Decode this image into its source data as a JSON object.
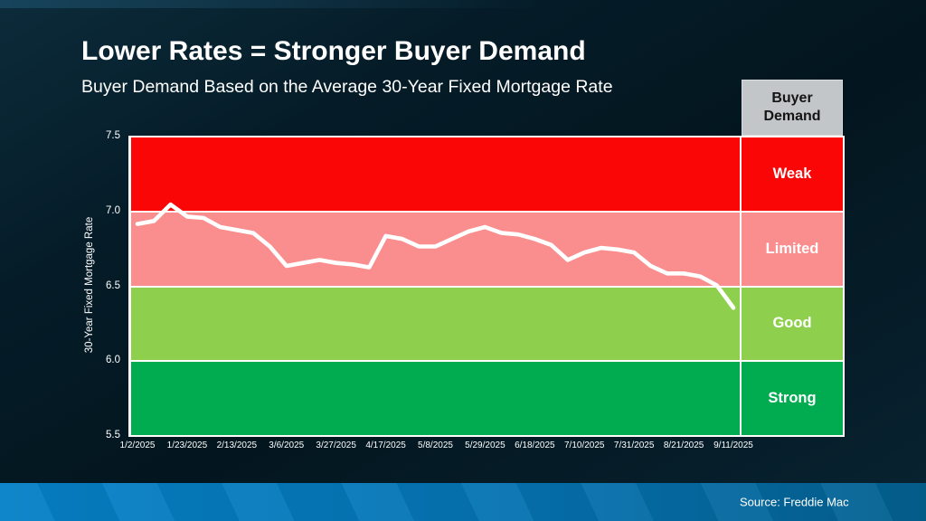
{
  "colors": {
    "background": "#051c28",
    "line": "#ffffff",
    "weak_red": "#fa0606",
    "limited_pink": "#fa8d8d",
    "good_lightgreen": "#8ed04e",
    "strong_green": "#01ab50",
    "panel_header_bg": "#c3c6c8",
    "footer_blue": "#0581c8"
  },
  "chart_data": {
    "type": "line",
    "title": "Lower Rates = Stronger Buyer Demand",
    "subtitle": "Buyer Demand Based on the Average 30-Year Fixed Mortgage Rate",
    "ylabel": "30-Year Fixed Mortgage Rate",
    "ylim": [
      5.5,
      7.5
    ],
    "yticks": [
      7.5,
      7.0,
      6.5,
      6.0,
      5.5
    ],
    "xticklabels": [
      "1/2/2025",
      "1/23/2025",
      "2/13/2025",
      "3/6/2025",
      "3/27/2025",
      "4/17/2025",
      "5/8/2025",
      "5/29/2025",
      "6/18/2025",
      "7/10/2025",
      "7/31/2025",
      "8/21/2025",
      "9/11/2025"
    ],
    "x": [
      "1/2/2025",
      "1/9/2025",
      "1/16/2025",
      "1/23/2025",
      "1/30/2025",
      "2/6/2025",
      "2/13/2025",
      "2/20/2025",
      "2/27/2025",
      "3/6/2025",
      "3/13/2025",
      "3/20/2025",
      "3/27/2025",
      "4/3/2025",
      "4/10/2025",
      "4/17/2025",
      "4/24/2025",
      "5/1/2025",
      "5/8/2025",
      "5/15/2025",
      "5/22/2025",
      "5/29/2025",
      "6/5/2025",
      "6/12/2025",
      "6/18/2025",
      "6/26/2025",
      "7/3/2025",
      "7/10/2025",
      "7/17/2025",
      "7/24/2025",
      "7/31/2025",
      "8/7/2025",
      "8/14/2025",
      "8/21/2025",
      "8/28/2025",
      "9/4/2025",
      "9/11/2025"
    ],
    "series": [
      {
        "name": "Average 30-Year Fixed Mortgage Rate",
        "values": [
          6.91,
          6.93,
          7.04,
          6.96,
          6.95,
          6.89,
          6.87,
          6.85,
          6.76,
          6.63,
          6.65,
          6.67,
          6.65,
          6.64,
          6.62,
          6.83,
          6.81,
          6.76,
          6.76,
          6.81,
          6.86,
          6.89,
          6.85,
          6.84,
          6.81,
          6.77,
          6.67,
          6.72,
          6.75,
          6.74,
          6.72,
          6.63,
          6.58,
          6.58,
          6.56,
          6.5,
          6.35
        ]
      }
    ],
    "bands": [
      {
        "label": "Weak",
        "range": [
          7.0,
          7.5
        ],
        "color": "#fa0606"
      },
      {
        "label": "Limited",
        "range": [
          6.5,
          7.0
        ],
        "color": "#fa8d8d"
      },
      {
        "label": "Good",
        "range": [
          6.0,
          6.5
        ],
        "color": "#8ed04e"
      },
      {
        "label": "Strong",
        "range": [
          5.5,
          6.0
        ],
        "color": "#01ab50"
      }
    ],
    "legend_title": "Buyer Demand",
    "legend_position": "right",
    "grid": "horizontal white lines at band boundaries",
    "source": "Source: Freddie Mac"
  }
}
